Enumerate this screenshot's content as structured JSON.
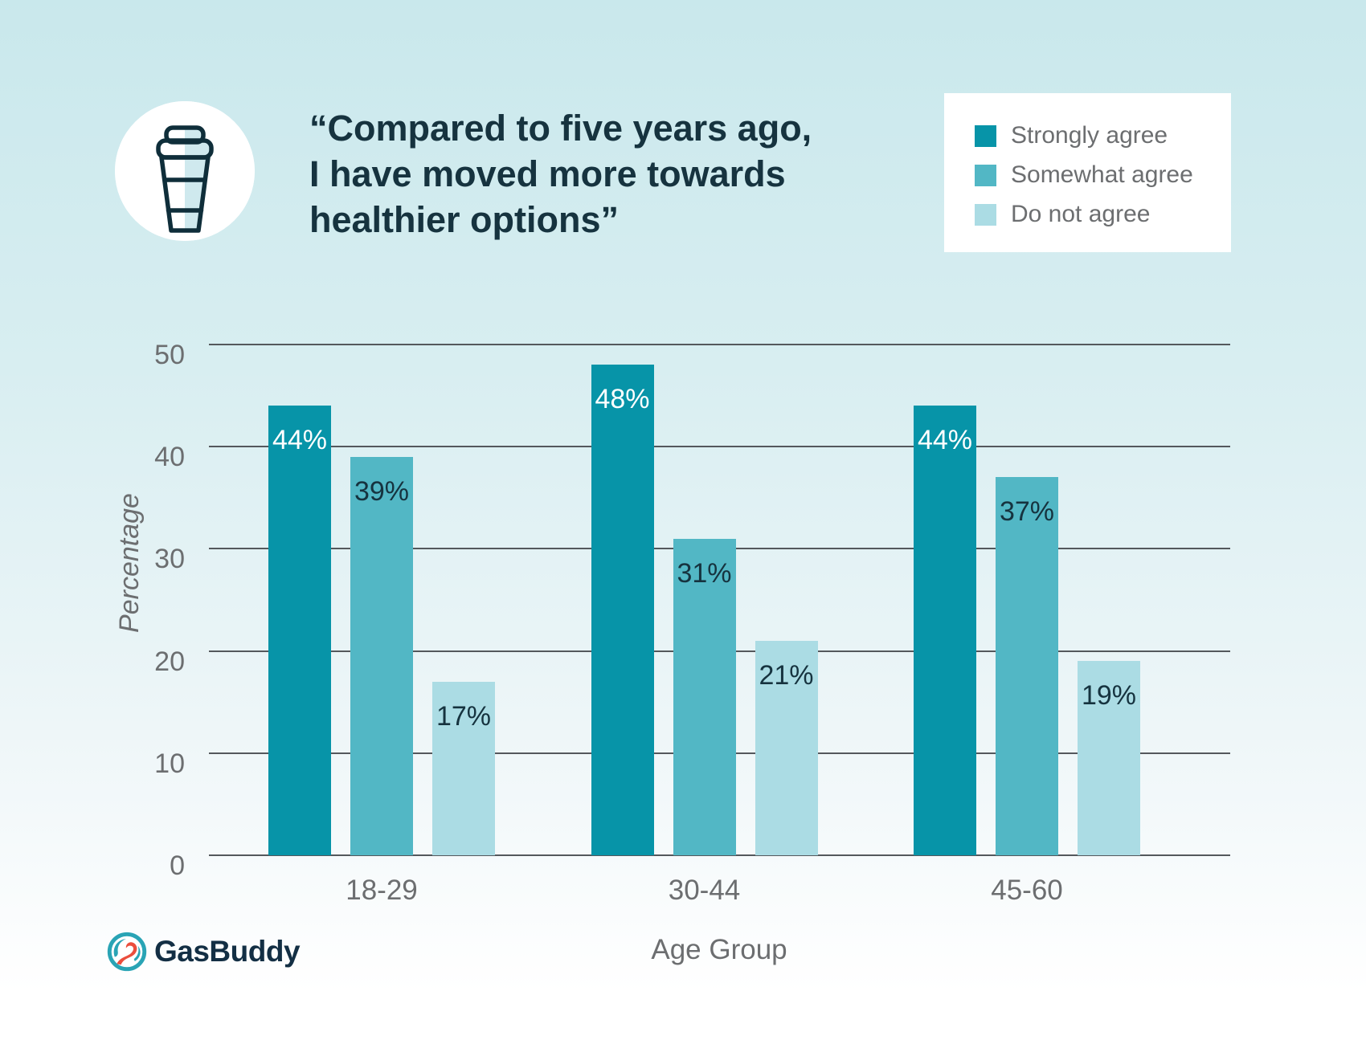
{
  "title": {
    "lines": [
      "“Compared to five years ago,",
      "I have moved more towards",
      "healthier options”"
    ]
  },
  "legend": {
    "items": [
      {
        "label": "Strongly agree",
        "color": "#0794a8"
      },
      {
        "label": "Somewhat agree",
        "color": "#52b7c5"
      },
      {
        "label": "Do not agree",
        "color": "#abdce4"
      }
    ]
  },
  "chart_data": {
    "type": "bar",
    "title": "“Compared to five years ago, I have moved more towards healthier options”",
    "categories": [
      "18-29",
      "30-44",
      "45-60"
    ],
    "series": [
      {
        "name": "Strongly agree",
        "color": "#0794a8",
        "values": [
          44,
          48,
          44
        ]
      },
      {
        "name": "Somewhat agree",
        "color": "#52b7c5",
        "values": [
          39,
          31,
          37
        ]
      },
      {
        "name": "Do not agree",
        "color": "#abdce4",
        "values": [
          17,
          21,
          19
        ]
      }
    ],
    "value_label_suffix": "%",
    "xlabel": "Age Group",
    "ylabel": "Percentage",
    "ylim": [
      0,
      50
    ],
    "yticks": [
      0,
      10,
      20,
      30,
      40,
      50
    ],
    "grid": true,
    "legend_position": "top-right"
  },
  "colors": {
    "title_text": "#16333f",
    "muted_text": "#6c6e70",
    "gridline": "#54585c",
    "value_label_on_dark": "#ffffff",
    "value_label_on_light": "#16333f",
    "background_top": "#c9e8ec",
    "background_bottom": "#ffffff",
    "legend_background": "#ffffff",
    "logo_teal": "#29a4b5",
    "logo_red": "#eb4e3d"
  },
  "footer": {
    "brand": "GasBuddy"
  }
}
